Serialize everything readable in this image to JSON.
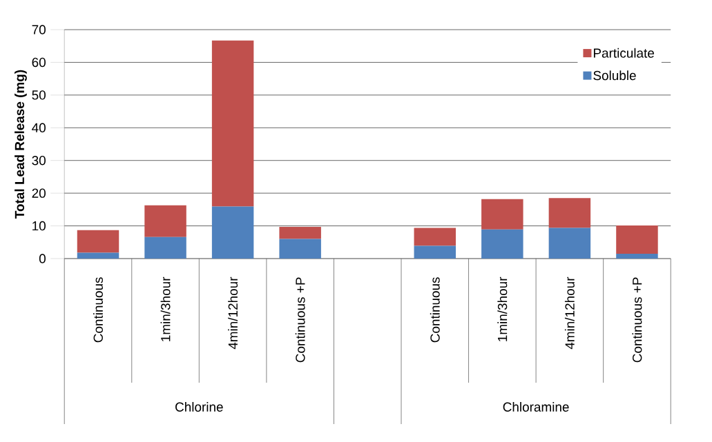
{
  "chart_data": {
    "type": "bar",
    "stacked": true,
    "ylabel": "Total Lead Release (mg)",
    "categories": [
      "Continuous",
      "1min/3hour",
      "4min/12hour",
      "Continuous +P",
      null,
      "Continuous",
      "1min/3hour",
      "4min/12hour",
      "Continuous +P"
    ],
    "series": [
      {
        "name": "Soluble",
        "color": "#4f81bd",
        "values": [
          1.8,
          6.6,
          15.9,
          6.0,
          null,
          3.9,
          8.9,
          9.4,
          1.5
        ]
      },
      {
        "name": "Particulate",
        "color": "#c0504d",
        "values": [
          6.9,
          9.7,
          50.8,
          3.7,
          null,
          5.5,
          9.3,
          9.1,
          8.6
        ]
      }
    ],
    "annotations": [
      "Chlorine",
      "Chloramine"
    ],
    "ylim": [
      0,
      70
    ],
    "yticks": [
      0,
      10,
      20,
      30,
      40,
      50,
      60,
      70
    ],
    "grid": "y",
    "legend": "top right"
  }
}
